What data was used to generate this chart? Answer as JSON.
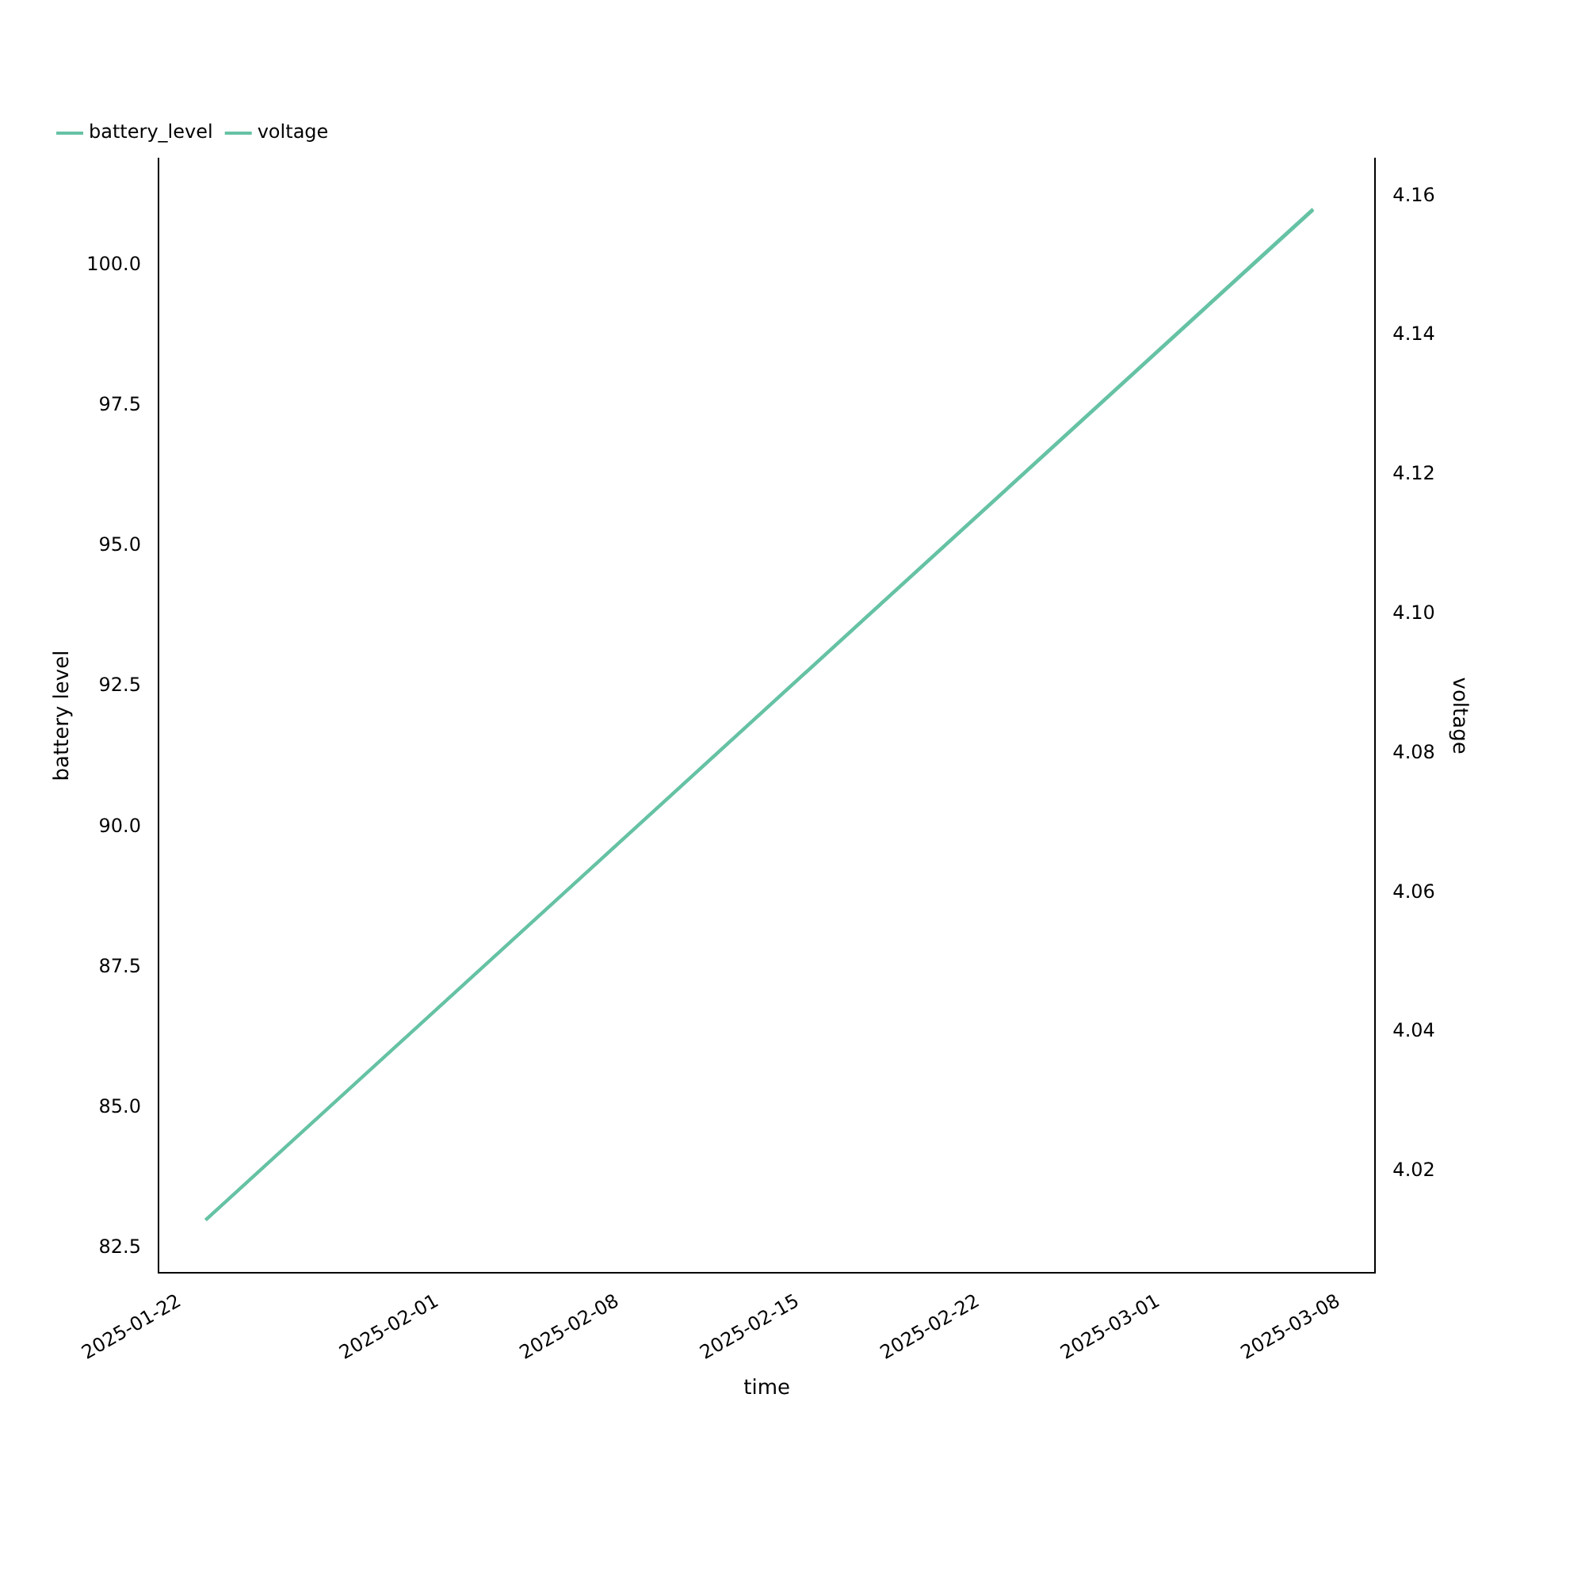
{
  "chart_data": {
    "type": "line",
    "xlabel": "time",
    "ylabel": "battery level",
    "y2label": "voltage",
    "series": [
      {
        "name": "battery_level",
        "color": "#66c2a5",
        "x": [
          "2025-01-23",
          "2025-03-07"
        ],
        "values": [
          83.0,
          101.0
        ]
      },
      {
        "name": "voltage",
        "color": "#66c2a5",
        "axis": "y2",
        "x": [
          "2025-01-23",
          "2025-03-07"
        ],
        "values": [
          4.013,
          4.158
        ]
      }
    ],
    "xlim": [
      "2025-01-21T04:00",
      "2025-03-09T10:00"
    ],
    "xticks": [
      "2025-01-22",
      "2025-02-01",
      "2025-02-08",
      "2025-02-15",
      "2025-02-22",
      "2025-03-01",
      "2025-03-08"
    ],
    "ylim": [
      82.06,
      101.9
    ],
    "yticks": [
      {
        "value": 82.5,
        "label": "82.5"
      },
      {
        "value": 85,
        "label": "85.0"
      },
      {
        "value": 87.5,
        "label": "87.5"
      },
      {
        "value": 90,
        "label": "90.0"
      },
      {
        "value": 92.5,
        "label": "92.5"
      },
      {
        "value": 95,
        "label": "95.0"
      },
      {
        "value": 97.5,
        "label": "97.5"
      },
      {
        "value": 100,
        "label": "100.0"
      }
    ],
    "y2lim": [
      4.0054,
      4.1654
    ],
    "y2ticks": [
      4.02,
      4.04,
      4.06,
      4.08,
      {
        "value": 4.1,
        "label": "4.10"
      },
      4.12,
      4.14,
      4.16
    ],
    "legend": "top left",
    "grid": false,
    "marker": "none",
    "line_style": "solid"
  }
}
